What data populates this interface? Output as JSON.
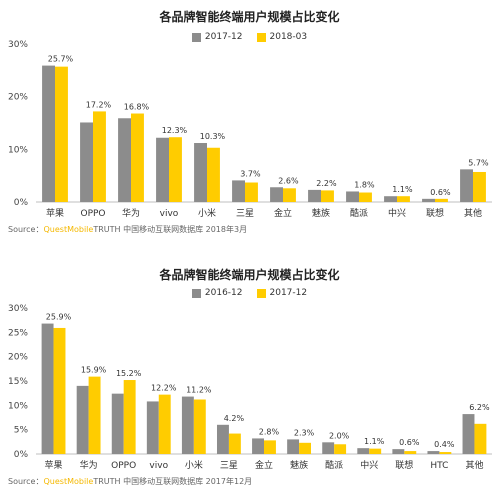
{
  "chart_data": [
    {
      "type": "bar",
      "title": "各品牌智能终端用户规模占比变化",
      "categories": [
        "苹果",
        "OPPO",
        "华为",
        "vivo",
        "小米",
        "三星",
        "金立",
        "魅族",
        "酷派",
        "中兴",
        "联想",
        "其他"
      ],
      "series": [
        {
          "name": "2017-12",
          "color": "#8c8c8c",
          "values": [
            25.9,
            15.1,
            15.9,
            12.2,
            11.2,
            4.1,
            2.8,
            2.3,
            2.0,
            1.1,
            0.6,
            6.2
          ]
        },
        {
          "name": "2018-03",
          "color": "#ffcc00",
          "values": [
            25.7,
            17.2,
            16.8,
            12.3,
            10.3,
            3.7,
            2.6,
            2.2,
            1.8,
            1.1,
            0.6,
            5.7
          ]
        }
      ],
      "data_labels": [
        "25.7%",
        "17.2%",
        "16.8%",
        "12.3%",
        "10.3%",
        "3.7%",
        "2.6%",
        "2.2%",
        "1.8%",
        "1.1%",
        "0.6%",
        "5.7%"
      ],
      "yticks": [
        "0%",
        "10%",
        "20%",
        "30%"
      ],
      "ylim": [
        0,
        30
      ],
      "grid": false,
      "legend": "top-center",
      "source": {
        "prefix": "Source：",
        "brand": "QuestMobile",
        "rest": "TRUTH 中国移动互联网数据库 2018年3月"
      }
    },
    {
      "type": "bar",
      "title": "各品牌智能终端用户规模占比变化",
      "categories": [
        "苹果",
        "华为",
        "OPPO",
        "vivo",
        "小米",
        "三星",
        "金立",
        "魅族",
        "酷派",
        "中兴",
        "联想",
        "HTC",
        "其他"
      ],
      "series": [
        {
          "name": "2016-12",
          "color": "#8c8c8c",
          "values": [
            26.8,
            14.0,
            12.4,
            10.8,
            11.8,
            6.0,
            3.2,
            3.0,
            2.4,
            1.2,
            1.0,
            0.6,
            8.2
          ]
        },
        {
          "name": "2017-12",
          "color": "#ffcc00",
          "values": [
            25.9,
            15.9,
            15.2,
            12.2,
            11.2,
            4.2,
            2.8,
            2.3,
            2.0,
            1.1,
            0.6,
            0.4,
            6.2
          ]
        }
      ],
      "data_labels": [
        "25.9%",
        "15.9%",
        "15.2%",
        "12.2%",
        "11.2%",
        "4.2%",
        "2.8%",
        "2.3%",
        "2.0%",
        "1.1%",
        "0.6%",
        "0.4%",
        "6.2%"
      ],
      "yticks": [
        "0%",
        "5%",
        "10%",
        "15%",
        "20%",
        "25%",
        "30%"
      ],
      "ylim": [
        0,
        30
      ],
      "grid": false,
      "legend": "top-center",
      "source": {
        "prefix": "Source：",
        "brand": "QuestMobile",
        "rest": "TRUTH 中国移动互联网数据库 2017年12月"
      }
    }
  ]
}
